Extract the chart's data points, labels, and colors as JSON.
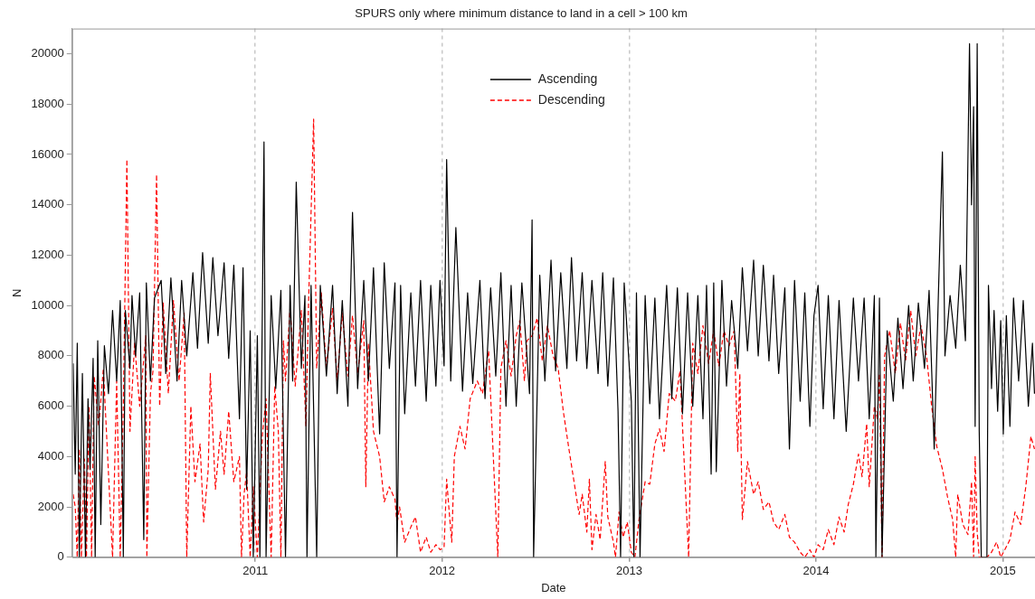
{
  "chart_data": {
    "type": "line",
    "title": "SPURS only where minimum distance to land in a cell > 100 km",
    "xlabel": "Date",
    "ylabel": "N",
    "xlim": [
      "2010-01-08",
      "2015-03-05"
    ],
    "xticks": [
      {
        "value": "2011-01-01",
        "label": "2011"
      },
      {
        "value": "2012-01-01",
        "label": "2012"
      },
      {
        "value": "2013-01-01",
        "label": "2013"
      },
      {
        "value": "2014-01-01",
        "label": "2014"
      },
      {
        "value": "2015-01-01",
        "label": "2015"
      }
    ],
    "ylim": [
      0,
      21000
    ],
    "yticks": [
      0,
      2000,
      4000,
      6000,
      8000,
      10000,
      12000,
      14000,
      16000,
      18000,
      20000
    ],
    "grid": "x",
    "legend": "top",
    "marker": "none",
    "series": [
      {
        "name": "Ascending",
        "color": "#000000",
        "line_style": "solid",
        "x": [
          "2010-01-10",
          "2010-01-14",
          "2010-01-18",
          "2010-01-22",
          "2010-01-28",
          "2010-02-03",
          "2010-02-08",
          "2010-02-12",
          "2010-02-18",
          "2010-02-22",
          "2010-02-27",
          "2010-03-05",
          "2010-03-12",
          "2010-03-20",
          "2010-03-28",
          "2010-04-05",
          "2010-04-12",
          "2010-04-18",
          "2010-04-22",
          "2010-05-01",
          "2010-05-05",
          "2010-05-12",
          "2010-05-20",
          "2010-05-28",
          "2010-06-02",
          "2010-06-10",
          "2010-06-18",
          "2010-07-01",
          "2010-07-10",
          "2010-07-20",
          "2010-08-01",
          "2010-08-10",
          "2010-08-20",
          "2010-09-01",
          "2010-09-10",
          "2010-09-20",
          "2010-10-01",
          "2010-10-10",
          "2010-10-20",
          "2010-11-01",
          "2010-11-10",
          "2010-11-20",
          "2010-12-01",
          "2010-12-08",
          "2010-12-15",
          "2010-12-22",
          "2010-12-28",
          "2011-01-05",
          "2011-01-10",
          "2011-01-18",
          "2011-01-22",
          "2011-02-01",
          "2011-02-10",
          "2011-02-20",
          "2011-03-01",
          "2011-03-10",
          "2011-03-15",
          "2011-03-22",
          "2011-04-01",
          "2011-04-08",
          "2011-04-12",
          "2011-04-20",
          "2011-05-01",
          "2011-05-08",
          "2011-05-20",
          "2011-06-01",
          "2011-06-10",
          "2011-06-20",
          "2011-07-01",
          "2011-07-10",
          "2011-07-20",
          "2011-08-01",
          "2011-08-10",
          "2011-08-20",
          "2011-09-01",
          "2011-09-10",
          "2011-09-20",
          "2011-10-01",
          "2011-10-05",
          "2011-10-12",
          "2011-10-20",
          "2011-11-01",
          "2011-11-10",
          "2011-11-20",
          "2011-12-01",
          "2011-12-10",
          "2011-12-20",
          "2011-12-28",
          "2012-01-05",
          "2012-01-10",
          "2012-01-18",
          "2012-01-28",
          "2012-02-10",
          "2012-02-20",
          "2012-03-01",
          "2012-03-15",
          "2012-03-25",
          "2012-04-05",
          "2012-04-15",
          "2012-04-25",
          "2012-05-05",
          "2012-05-15",
          "2012-05-25",
          "2012-06-05",
          "2012-06-20",
          "2012-06-25",
          "2012-06-28",
          "2012-07-10",
          "2012-07-20",
          "2012-08-01",
          "2012-08-10",
          "2012-08-20",
          "2012-09-01",
          "2012-09-10",
          "2012-09-20",
          "2012-10-01",
          "2012-10-10",
          "2012-10-20",
          "2012-11-01",
          "2012-11-10",
          "2012-11-20",
          "2012-12-01",
          "2012-12-10",
          "2012-12-15",
          "2012-12-22",
          "2013-01-05",
          "2013-01-10",
          "2013-01-15",
          "2013-01-22",
          "2013-02-01",
          "2013-02-10",
          "2013-02-20",
          "2013-03-01",
          "2013-03-15",
          "2013-03-25",
          "2013-04-05",
          "2013-04-15",
          "2013-04-25",
          "2013-05-05",
          "2013-05-15",
          "2013-05-25",
          "2013-06-01",
          "2013-06-10",
          "2013-06-15",
          "2013-06-20",
          "2013-07-01",
          "2013-07-10",
          "2013-07-20",
          "2013-08-01",
          "2013-08-10",
          "2013-08-20",
          "2013-09-01",
          "2013-09-10",
          "2013-09-20",
          "2013-10-01",
          "2013-10-10",
          "2013-10-20",
          "2013-11-01",
          "2013-11-10",
          "2013-11-20",
          "2013-12-01",
          "2013-12-10",
          "2013-12-20",
          "2013-12-28",
          "2014-01-05",
          "2014-01-15",
          "2014-01-25",
          "2014-02-05",
          "2014-02-15",
          "2014-03-01",
          "2014-03-15",
          "2014-03-25",
          "2014-04-05",
          "2014-04-15",
          "2014-04-25",
          "2014-04-28",
          "2014-05-05",
          "2014-05-10",
          "2014-05-20",
          "2014-06-01",
          "2014-06-10",
          "2014-06-20",
          "2014-07-01",
          "2014-07-10",
          "2014-07-20",
          "2014-08-01",
          "2014-08-10",
          "2014-08-20",
          "2014-08-28",
          "2014-09-05",
          "2014-09-10",
          "2014-09-20",
          "2014-10-01",
          "2014-10-10",
          "2014-10-20",
          "2014-10-28",
          "2014-11-01",
          "2014-11-05",
          "2014-11-08",
          "2014-11-12",
          "2014-11-16",
          "2014-11-20",
          "2014-12-01",
          "2014-12-04",
          "2014-12-10",
          "2014-12-15",
          "2014-12-22",
          "2014-12-28",
          "2015-01-02",
          "2015-01-08",
          "2015-01-15",
          "2015-01-22",
          "2015-02-01",
          "2015-02-10",
          "2015-02-20",
          "2015-02-28",
          "2015-03-04"
        ],
        "values": [
          7700,
          3300,
          8500,
          0,
          7300,
          0,
          6300,
          3500,
          7900,
          0,
          8600,
          1300,
          8400,
          6500,
          9800,
          7000,
          10200,
          0,
          9800,
          7500,
          10400,
          8000,
          10500,
          700,
          10900,
          7000,
          10300,
          11000,
          7300,
          11100,
          7000,
          11000,
          8000,
          11300,
          8300,
          12100,
          8500,
          11900,
          8800,
          11700,
          7900,
          11600,
          5500,
          11500,
          2700,
          9000,
          0,
          8800,
          0,
          16500,
          0,
          10400,
          6700,
          10600,
          0,
          10800,
          7000,
          14900,
          7500,
          10400,
          0,
          10800,
          0,
          10800,
          7200,
          10800,
          6500,
          10200,
          6000,
          13700,
          6700,
          11000,
          7000,
          11500,
          4900,
          11700,
          7500,
          10900,
          0,
          10800,
          5700,
          10500,
          6800,
          11000,
          6200,
          10800,
          6800,
          11000,
          7600,
          15800,
          7000,
          13100,
          6600,
          10500,
          6900,
          11000,
          6300,
          10700,
          7200,
          11300,
          6000,
          10800,
          6000,
          10900,
          6500,
          13400,
          0,
          11200,
          7000,
          11800,
          7400,
          11300,
          7500,
          11900,
          7800,
          11300,
          7500,
          11000,
          7300,
          11300,
          6800,
          11100,
          5800,
          0,
          10900,
          6200,
          0,
          10500,
          0,
          10400,
          6100,
          10300,
          5500,
          10800,
          6300,
          10700,
          5700,
          10500,
          6000,
          10400,
          5500,
          10800,
          3300,
          10900,
          3400,
          11000,
          6800,
          10200,
          7500,
          11500,
          8200,
          11800,
          8000,
          11600,
          7800,
          11200,
          7300,
          10700,
          4300,
          11000,
          6200,
          10500,
          5200,
          9600,
          10800,
          5900,
          10400,
          5500,
          10200,
          5000,
          10300,
          7000,
          10300,
          5500,
          10400,
          0,
          10300,
          0,
          9000,
          6200,
          9500,
          6700,
          10000,
          7000,
          10100,
          7500,
          10600,
          4300,
          10300,
          16100,
          8000,
          10400,
          8300,
          11600,
          8600,
          20400,
          14000,
          17900,
          5200,
          20400,
          5000,
          0,
          0,
          10800,
          6700,
          9800,
          5800,
          9400,
          4900,
          9600,
          5200,
          10300,
          7000,
          10200,
          6000,
          8500,
          6500
        ]
      },
      {
        "name": "Descending",
        "color": "#ff0000",
        "line_style": "dashed",
        "x": [
          "2010-01-10",
          "2010-01-14",
          "2010-01-18",
          "2010-01-22",
          "2010-01-26",
          "2010-02-01",
          "2010-02-05",
          "2010-02-10",
          "2010-02-15",
          "2010-02-20",
          "2010-03-01",
          "2010-03-10",
          "2010-03-28",
          "2010-04-05",
          "2010-04-12",
          "2010-04-18",
          "2010-04-25",
          "2010-05-01",
          "2010-05-10",
          "2010-05-20",
          "2010-06-01",
          "2010-06-03",
          "2010-06-10",
          "2010-06-15",
          "2010-06-22",
          "2010-06-28",
          "2010-07-05",
          "2010-07-15",
          "2010-07-25",
          "2010-08-05",
          "2010-08-15",
          "2010-08-20",
          "2010-08-28",
          "2010-09-05",
          "2010-09-15",
          "2010-09-22",
          "2010-10-01",
          "2010-10-05",
          "2010-10-15",
          "2010-10-25",
          "2010-11-01",
          "2010-11-10",
          "2010-11-20",
          "2010-12-01",
          "2010-12-05",
          "2010-12-10",
          "2010-12-15",
          "2010-12-22",
          "2010-12-28",
          "2011-01-05",
          "2011-01-15",
          "2011-01-22",
          "2011-02-01",
          "2011-02-08",
          "2011-02-15",
          "2011-02-20",
          "2011-02-25",
          "2011-03-01",
          "2011-03-10",
          "2011-03-20",
          "2011-04-01",
          "2011-04-10",
          "2011-04-15",
          "2011-04-25",
          "2011-05-01",
          "2011-05-10",
          "2011-05-20",
          "2011-06-01",
          "2011-06-10",
          "2011-06-20",
          "2011-07-01",
          "2011-07-10",
          "2011-07-20",
          "2011-08-01",
          "2011-08-05",
          "2011-08-10",
          "2011-08-20",
          "2011-09-01",
          "2011-09-10",
          "2011-09-20",
          "2011-10-01",
          "2011-10-05",
          "2011-10-10",
          "2011-10-20",
          "2011-11-01",
          "2011-11-10",
          "2011-11-20",
          "2011-12-01",
          "2011-12-10",
          "2011-12-20",
          "2011-12-28",
          "2012-01-05",
          "2012-01-10",
          "2012-01-15",
          "2012-01-20",
          "2012-01-25",
          "2012-02-05",
          "2012-02-15",
          "2012-02-25",
          "2012-03-10",
          "2012-03-20",
          "2012-04-01",
          "2012-04-19",
          "2012-04-25",
          "2012-05-05",
          "2012-05-15",
          "2012-05-25",
          "2012-06-01",
          "2012-06-10",
          "2012-06-15",
          "2012-06-25",
          "2012-07-05",
          "2012-07-15",
          "2012-07-25",
          "2012-08-05",
          "2012-08-15",
          "2012-08-25",
          "2012-09-05",
          "2012-09-15",
          "2012-09-25",
          "2012-10-01",
          "2012-10-10",
          "2012-10-15",
          "2012-10-20",
          "2012-10-28",
          "2012-11-05",
          "2012-11-15",
          "2012-11-20",
          "2012-12-01",
          "2012-12-05",
          "2012-12-12",
          "2012-12-20",
          "2012-12-28",
          "2013-01-05",
          "2013-01-12",
          "2013-01-20",
          "2013-02-01",
          "2013-02-10",
          "2013-02-20",
          "2013-03-01",
          "2013-03-10",
          "2013-03-20",
          "2013-04-01",
          "2013-04-10",
          "2013-04-27",
          "2013-05-05",
          "2013-05-15",
          "2013-05-25",
          "2013-06-05",
          "2013-06-15",
          "2013-06-25",
          "2013-07-05",
          "2013-07-15",
          "2013-07-25",
          "2013-08-01",
          "2013-08-05",
          "2013-08-10",
          "2013-08-20",
          "2013-09-01",
          "2013-09-10",
          "2013-09-20",
          "2013-10-01",
          "2013-10-10",
          "2013-10-20",
          "2013-11-01",
          "2013-11-10",
          "2013-11-20",
          "2013-12-01",
          "2013-12-10",
          "2013-12-20",
          "2013-12-28",
          "2014-01-05",
          "2014-01-15",
          "2014-01-25",
          "2014-02-05",
          "2014-02-15",
          "2014-02-25",
          "2014-03-05",
          "2014-03-15",
          "2014-03-25",
          "2014-04-01",
          "2014-04-10",
          "2014-04-15",
          "2014-04-25",
          "2014-05-01",
          "2014-05-05",
          "2014-05-10",
          "2014-05-15",
          "2014-05-25",
          "2014-06-05",
          "2014-06-15",
          "2014-06-25",
          "2014-07-05",
          "2014-07-15",
          "2014-07-25",
          "2014-08-05",
          "2014-08-15",
          "2014-08-25",
          "2014-09-05",
          "2014-09-15",
          "2014-09-25",
          "2014-10-01",
          "2014-10-05",
          "2014-10-15",
          "2014-10-25",
          "2014-11-01",
          "2014-11-05",
          "2014-11-08",
          "2014-11-12",
          "2014-11-16",
          "2014-12-01",
          "2014-12-10",
          "2014-12-20",
          "2014-12-28",
          "2015-01-05",
          "2015-01-15",
          "2015-01-25",
          "2015-02-05",
          "2015-02-15",
          "2015-02-25",
          "2015-03-04"
        ],
        "values": [
          2500,
          2000,
          0,
          4300,
          0,
          3900,
          0,
          6000,
          0,
          7200,
          5200,
          7500,
          0,
          7000,
          0,
          6000,
          15800,
          5000,
          8500,
          6000,
          8800,
          0,
          6500,
          7400,
          15200,
          6000,
          10100,
          6500,
          10200,
          7000,
          9700,
          0,
          6000,
          3000,
          4500,
          1400,
          3500,
          7300,
          2700,
          5000,
          3300,
          5800,
          3000,
          4000,
          0,
          2500,
          3400,
          0,
          2800,
          0,
          4900,
          6300,
          0,
          6800,
          5000,
          0,
          8600,
          7000,
          9900,
          6800,
          9800,
          5200,
          10000,
          17400,
          7500,
          10500,
          7500,
          9900,
          7000,
          9700,
          7200,
          9600,
          7300,
          9400,
          2800,
          8500,
          5000,
          4000,
          2200,
          2800,
          2300,
          1300,
          2000,
          600,
          1200,
          1600,
          200,
          800,
          200,
          500,
          300,
          400,
          3100,
          1800,
          600,
          4000,
          5200,
          4300,
          6300,
          7000,
          6500,
          8200,
          0,
          7500,
          8600,
          7200,
          8800,
          9400,
          7000,
          8600,
          8800,
          9500,
          7800,
          9200,
          8000,
          7500,
          5800,
          4300,
          3000,
          1700,
          2500,
          1000,
          3100,
          300,
          1700,
          700,
          3800,
          1600,
          600,
          0,
          1800,
          800,
          1400,
          200,
          0,
          1500,
          3000,
          2900,
          4500,
          5100,
          4200,
          6500,
          6200,
          7400,
          0,
          8500,
          7300,
          9200,
          7700,
          9000,
          7600,
          9000,
          8400,
          9000,
          4200,
          7300,
          1500,
          3800,
          2500,
          3000,
          1900,
          2200,
          1400,
          1100,
          1700,
          800,
          600,
          200,
          0,
          300,
          0,
          500,
          300,
          1100,
          500,
          1600,
          1000,
          2100,
          2900,
          4100,
          3200,
          5300,
          2800,
          6000,
          5500,
          7300,
          0,
          8000,
          9000,
          7300,
          9300,
          7800,
          9800,
          8000,
          9200,
          8000,
          6000,
          4400,
          3500,
          2400,
          1500,
          0,
          2500,
          1300,
          900,
          3000,
          0,
          4000,
          1000,
          0,
          0,
          200,
          600,
          0,
          300,
          700,
          1800,
          1300,
          2800,
          4800,
          4300
        ]
      }
    ]
  }
}
